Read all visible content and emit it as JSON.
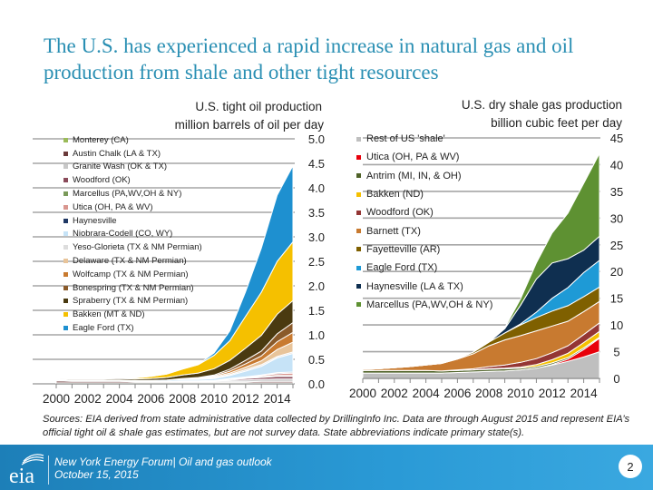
{
  "slide": {
    "title": "The U.S. has experienced a rapid increase in natural gas and oil production from shale and other tight resources",
    "sources": "Sources: EIA derived from state administrative data collected by DrillingInfo Inc. Data are through August 2015  and represent EIA’s official tight oil & shale gas estimates, but are not survey data. State abbreviations indicate primary state(s).",
    "footer": {
      "logo_text": "eia",
      "line1": "New York Energy Forum| Oil and gas outlook",
      "line2": "October 15, 2015",
      "page_number": "2"
    }
  },
  "chart_data": [
    {
      "type": "area",
      "stacked": true,
      "title": "U.S. tight oil production",
      "subtitle": "million barrels of oil per day",
      "ylabel": "million barrels of oil per day",
      "ylim": [
        0,
        5
      ],
      "yticks": [
        "0.0",
        "0.5",
        "1.0",
        "1.5",
        "2.0",
        "2.5",
        "3.0",
        "3.5",
        "4.0",
        "4.5",
        "5.0"
      ],
      "x": [
        2000,
        2001,
        2002,
        2003,
        2004,
        2005,
        2006,
        2007,
        2008,
        2009,
        2010,
        2011,
        2012,
        2013,
        2014,
        2015
      ],
      "xticks": [
        "2000",
        "2002",
        "2004",
        "2006",
        "2008",
        "2010",
        "2012",
        "2014"
      ],
      "legend_position": "left",
      "series": [
        {
          "name": "Monterey (CA)",
          "color": "#9bbb59",
          "values": [
            0.02,
            0.02,
            0.02,
            0.02,
            0.02,
            0.02,
            0.02,
            0.02,
            0.02,
            0.02,
            0.02,
            0.02,
            0.02,
            0.02,
            0.02,
            0.02
          ]
        },
        {
          "name": "Austin Chalk (LA & TX)",
          "color": "#6b3a3a",
          "values": [
            0.04,
            0.03,
            0.03,
            0.03,
            0.03,
            0.02,
            0.02,
            0.02,
            0.02,
            0.02,
            0.02,
            0.02,
            0.02,
            0.03,
            0.03,
            0.03
          ]
        },
        {
          "name": "Granite Wash (OK & TX)",
          "color": "#c8c8c8",
          "values": [
            0.01,
            0.01,
            0.01,
            0.01,
            0.01,
            0.01,
            0.01,
            0.01,
            0.02,
            0.02,
            0.02,
            0.03,
            0.04,
            0.04,
            0.05,
            0.05
          ]
        },
        {
          "name": "Woodford (OK)",
          "color": "#8a4a5a",
          "values": [
            0,
            0,
            0,
            0,
            0,
            0,
            0,
            0,
            0,
            0,
            0.01,
            0.02,
            0.03,
            0.04,
            0.05,
            0.05
          ]
        },
        {
          "name": "Marcellus (PA,WV,OH & NY)",
          "color": "#7a9a5a",
          "values": [
            0,
            0,
            0,
            0,
            0,
            0,
            0,
            0,
            0,
            0,
            0,
            0.01,
            0.01,
            0.02,
            0.02,
            0.02
          ]
        },
        {
          "name": "Utica (OH, PA & WV)",
          "color": "#d9968f",
          "values": [
            0,
            0,
            0,
            0,
            0,
            0,
            0,
            0,
            0,
            0,
            0,
            0,
            0.01,
            0.02,
            0.04,
            0.05
          ]
        },
        {
          "name": "Haynesville",
          "color": "#1f3864",
          "values": [
            0,
            0,
            0,
            0,
            0,
            0,
            0,
            0,
            0,
            0,
            0,
            0.01,
            0.01,
            0.01,
            0.02,
            0.02
          ]
        },
        {
          "name": "Niobrara-Codell (CO, WY)",
          "color": "#c6e3f7",
          "values": [
            0.02,
            0.02,
            0.02,
            0.02,
            0.02,
            0.02,
            0.02,
            0.03,
            0.03,
            0.03,
            0.04,
            0.06,
            0.12,
            0.18,
            0.3,
            0.38
          ]
        },
        {
          "name": "Yeso-Glorieta (TX & NM Permian)",
          "color": "#dddddd",
          "values": [
            0,
            0,
            0,
            0,
            0,
            0,
            0,
            0,
            0,
            0.01,
            0.01,
            0.02,
            0.03,
            0.03,
            0.03,
            0.03
          ]
        },
        {
          "name": "Delaware (TX & NM Permian)",
          "color": "#e8c49a",
          "values": [
            0,
            0,
            0,
            0,
            0,
            0,
            0,
            0,
            0.01,
            0.01,
            0.02,
            0.03,
            0.05,
            0.08,
            0.14,
            0.2
          ]
        },
        {
          "name": "Wolfcamp (TX & NM Permian)",
          "color": "#c87a30",
          "values": [
            0,
            0,
            0,
            0,
            0,
            0,
            0,
            0,
            0.01,
            0.01,
            0.02,
            0.04,
            0.07,
            0.1,
            0.16,
            0.2
          ]
        },
        {
          "name": "Bonespring (TX & NM Permian)",
          "color": "#8a5a2a",
          "values": [
            0,
            0,
            0,
            0,
            0,
            0,
            0,
            0,
            0,
            0.01,
            0.02,
            0.04,
            0.07,
            0.1,
            0.16,
            0.2
          ]
        },
        {
          "name": "Spraberry (TX & NM Permian)",
          "color": "#4a3a10",
          "values": [
            0.02,
            0.02,
            0.02,
            0.02,
            0.03,
            0.03,
            0.04,
            0.05,
            0.07,
            0.09,
            0.13,
            0.18,
            0.25,
            0.32,
            0.4,
            0.45
          ]
        },
        {
          "name": "Bakken (MT & ND)",
          "color": "#f5c000",
          "values": [
            0.01,
            0.01,
            0.01,
            0.01,
            0.01,
            0.02,
            0.04,
            0.07,
            0.12,
            0.17,
            0.27,
            0.4,
            0.65,
            0.88,
            1.08,
            1.2
          ]
        },
        {
          "name": "Eagle Ford (TX)",
          "color": "#1e90d0",
          "values": [
            0,
            0,
            0,
            0,
            0,
            0,
            0,
            0,
            0,
            0.01,
            0.05,
            0.2,
            0.5,
            0.9,
            1.35,
            1.55
          ]
        }
      ]
    },
    {
      "type": "area",
      "stacked": true,
      "title": "U.S. dry shale gas production",
      "subtitle": "billion cubic feet per day",
      "ylabel": "billion cubic feet per day",
      "ylim": [
        0,
        45
      ],
      "yticks": [
        "0",
        "5",
        "10",
        "15",
        "20",
        "25",
        "30",
        "35",
        "40",
        "45"
      ],
      "x": [
        2000,
        2001,
        2002,
        2003,
        2004,
        2005,
        2006,
        2007,
        2008,
        2009,
        2010,
        2011,
        2012,
        2013,
        2014,
        2015
      ],
      "xticks": [
        "2000",
        "2002",
        "2004",
        "2006",
        "2008",
        "2010",
        "2012",
        "2014"
      ],
      "legend_position": "left",
      "series": [
        {
          "name": "Rest of US 'shale'",
          "color": "#bfbfbf",
          "values": [
            1.0,
            1.0,
            1.0,
            1.0,
            1.0,
            1.0,
            1.1,
            1.2,
            1.3,
            1.4,
            1.6,
            1.9,
            2.5,
            3.2,
            4.0,
            5.0
          ]
        },
        {
          "name": "Utica (OH, PA & WV)",
          "color": "#e8000b",
          "values": [
            0,
            0,
            0,
            0,
            0,
            0,
            0,
            0,
            0,
            0,
            0,
            0,
            0.1,
            0.4,
            1.4,
            2.5
          ]
        },
        {
          "name": "Antrim (MI, IN, & OH)",
          "color": "#4f6228",
          "values": [
            0.5,
            0.5,
            0.5,
            0.5,
            0.5,
            0.4,
            0.4,
            0.4,
            0.4,
            0.4,
            0.3,
            0.3,
            0.3,
            0.3,
            0.3,
            0.2
          ]
        },
        {
          "name": "Bakken (ND)",
          "color": "#f5c000",
          "values": [
            0,
            0,
            0,
            0,
            0,
            0,
            0,
            0,
            0.1,
            0.1,
            0.2,
            0.4,
            0.6,
            0.8,
            1.0,
            1.1
          ]
        },
        {
          "name": "Woodford (OK)",
          "color": "#943634",
          "values": [
            0,
            0,
            0,
            0,
            0,
            0,
            0.1,
            0.2,
            0.4,
            0.6,
            0.9,
            1.1,
            1.3,
            1.4,
            1.5,
            1.6
          ]
        },
        {
          "name": "Barnett (TX)",
          "color": "#c87a30",
          "values": [
            0.2,
            0.3,
            0.5,
            0.7,
            1.0,
            1.4,
            2.0,
            2.8,
            3.9,
            4.7,
            5.0,
            5.2,
            5.0,
            4.6,
            4.3,
            4.0
          ]
        },
        {
          "name": "Fayetteville (AR)",
          "color": "#7f6000",
          "values": [
            0,
            0,
            0,
            0,
            0,
            0,
            0.1,
            0.3,
            0.7,
            1.3,
            2.0,
            2.5,
            2.8,
            2.9,
            2.8,
            2.7
          ]
        },
        {
          "name": "Eagle Ford (TX)",
          "color": "#1e9ad6",
          "values": [
            0,
            0,
            0,
            0,
            0,
            0,
            0,
            0,
            0,
            0,
            0.2,
            1.0,
            2.4,
            3.4,
            4.5,
            5.0
          ]
        },
        {
          "name": "Haynesville (LA & TX)",
          "color": "#0f2f50",
          "values": [
            0,
            0,
            0,
            0,
            0,
            0,
            0,
            0,
            0,
            0.8,
            3.5,
            6.2,
            6.6,
            5.4,
            4.2,
            4.5
          ]
        },
        {
          "name": "Marcellus (PA,WV,OH & NY)",
          "color": "#5e9132",
          "values": [
            0,
            0,
            0,
            0,
            0,
            0,
            0,
            0,
            0,
            0.2,
            1.2,
            3.0,
            5.6,
            8.5,
            12.5,
            15.5
          ]
        }
      ]
    }
  ]
}
